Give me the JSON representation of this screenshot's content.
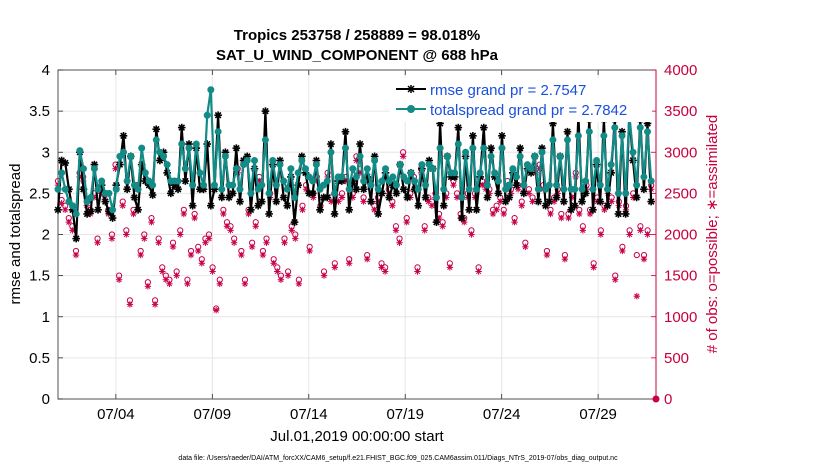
{
  "chart_data": {
    "type": "line",
    "title": "Tropics 253758 / 258889 = 98.018%",
    "subtitle": "SAT_U_WIND_COMPONENT @ 688 hPa",
    "xlabel": "Jul.01,2019 00:00:00 start",
    "ylabel": "rmse and totalspread",
    "ylabel_right": "# of obs: o=possible; ∗=assimilated",
    "xlim": [
      1.0,
      32.0
    ],
    "ylim": [
      0,
      4
    ],
    "ylim_right": [
      0,
      4000
    ],
    "xticks": [
      4,
      9,
      14,
      19,
      24,
      29
    ],
    "xticklabels": [
      "07/04",
      "07/09",
      "07/14",
      "07/19",
      "07/24",
      "07/29"
    ],
    "yticks": [
      0,
      0.5,
      1,
      1.5,
      2,
      2.5,
      3,
      3.5,
      4
    ],
    "yticklabels": [
      "0",
      "0.5",
      "1",
      "1.5",
      "2",
      "2.5",
      "3",
      "3.5",
      "4"
    ],
    "yticks_right": [
      0,
      500,
      1000,
      1500,
      2000,
      2500,
      3000,
      3500,
      4000
    ],
    "yticklabels_right": [
      "0",
      "500",
      "1000",
      "1500",
      "2000",
      "2500",
      "3000",
      "3500",
      "4000"
    ],
    "grid": true,
    "legend_position": "top-right",
    "series": [
      {
        "name": "rmse grand pr = 2.7547",
        "color": "#000000",
        "marker": "asterisk",
        "values": [
          2.3,
          2.9,
          2.87,
          2.55,
          2.3,
          1.95,
          3.0,
          2.55,
          2.25,
          2.28,
          2.85,
          2.3,
          2.6,
          2.4,
          2.28,
          2.2,
          2.6,
          2.85,
          3.2,
          2.55,
          2.95,
          2.45,
          2.3,
          2.85,
          2.65,
          2.6,
          2.48,
          3.28,
          2.9,
          3.0,
          2.75,
          2.5,
          2.6,
          2.55,
          3.3,
          2.65,
          3.1,
          2.35,
          3.05,
          2.55,
          2.55,
          3.1,
          2.35,
          2.55,
          3.45,
          2.45,
          3.0,
          2.45,
          2.5,
          3.05,
          2.4,
          2.9,
          2.95,
          2.3,
          2.8,
          2.35,
          2.4,
          3.5,
          2.25,
          2.85,
          2.4,
          2.9,
          2.45,
          2.35,
          2.7,
          2.15,
          2.6,
          2.95,
          2.75,
          2.5,
          2.5,
          2.9,
          2.3,
          2.45,
          2.45,
          3.1,
          2.25,
          2.65,
          2.65,
          3.25,
          2.3,
          2.65,
          2.55,
          3.1,
          2.55,
          2.7,
          2.4,
          2.95,
          2.25,
          2.5,
          2.75,
          2.45,
          2.6,
          2.5,
          2.85,
          2.55,
          2.45,
          2.75,
          2.55,
          2.35,
          2.8,
          2.45,
          2.9,
          2.8,
          2.15,
          3.35,
          2.35,
          2.95,
          2.7,
          2.7,
          3.3,
          2.2,
          2.95,
          2.3,
          3.2,
          2.3,
          2.7,
          3.3,
          2.45,
          3.05,
          2.7,
          2.5,
          3.2,
          2.4,
          2.45,
          2.75,
          2.6,
          3.05,
          2.5,
          2.8,
          2.75,
          2.95,
          2.4,
          3.05,
          2.35,
          2.4,
          3.35,
          2.45,
          2.95,
          2.4,
          3.25,
          2.3,
          2.35,
          3.45,
          2.4,
          2.5,
          3.4,
          2.3,
          2.85,
          2.4,
          3.4,
          2.35,
          2.75,
          3.4,
          2.25,
          3.25,
          2.25,
          3.45,
          2.9,
          2.45,
          3.4,
          2.55,
          3.35,
          2.4
        ]
      },
      {
        "name": "totalspread grand pr = 2.7842",
        "color": "#138b86",
        "marker": "circle",
        "values": [
          2.55,
          2.75,
          2.55,
          2.4,
          2.35,
          2.25,
          3.02,
          2.8,
          2.4,
          2.45,
          2.8,
          2.55,
          2.65,
          2.5,
          2.5,
          2.3,
          2.55,
          2.95,
          3.0,
          2.65,
          2.95,
          2.6,
          2.55,
          3.05,
          2.75,
          2.65,
          2.6,
          3.15,
          3.0,
          2.95,
          2.85,
          2.65,
          2.65,
          2.65,
          3.1,
          2.8,
          3.05,
          2.6,
          3.1,
          2.75,
          2.6,
          3.45,
          3.76,
          2.6,
          3.25,
          2.55,
          2.95,
          2.6,
          2.6,
          2.8,
          2.55,
          2.85,
          2.9,
          2.5,
          2.9,
          2.55,
          2.6,
          3.15,
          2.5,
          2.9,
          2.6,
          2.85,
          2.65,
          2.55,
          2.8,
          2.45,
          2.75,
          2.9,
          2.8,
          2.7,
          2.65,
          2.85,
          2.55,
          2.6,
          2.65,
          3.0,
          2.5,
          2.7,
          2.7,
          3.05,
          2.55,
          2.8,
          2.7,
          2.95,
          2.65,
          2.8,
          2.6,
          2.9,
          2.55,
          2.65,
          2.8,
          2.65,
          2.7,
          2.6,
          2.85,
          2.7,
          2.65,
          2.75,
          2.65,
          2.55,
          2.85,
          2.6,
          2.85,
          2.8,
          2.45,
          3.05,
          2.55,
          2.95,
          2.75,
          2.75,
          3.1,
          2.45,
          3.0,
          2.55,
          3.05,
          2.55,
          2.75,
          3.05,
          2.6,
          2.95,
          2.75,
          2.65,
          3.05,
          2.55,
          2.6,
          2.8,
          2.7,
          2.95,
          2.6,
          2.85,
          2.8,
          2.95,
          2.55,
          3.0,
          2.55,
          2.6,
          3.15,
          2.6,
          2.95,
          2.55,
          3.15,
          2.55,
          2.55,
          3.2,
          2.55,
          2.65,
          3.25,
          2.55,
          2.9,
          2.6,
          3.2,
          2.55,
          2.85,
          3.3,
          2.5,
          3.2,
          2.5,
          3.45,
          3.0,
          2.6,
          3.3,
          2.7,
          3.25,
          2.65
        ]
      },
      {
        "name": "obs possible",
        "color": "#c8004b",
        "marker": "circle",
        "axis": "right",
        "values": [
          2650,
          2420,
          2350,
          2200,
          2100,
          1800,
          2750,
          2700,
          2400,
          2300,
          2500,
          1950,
          2550,
          2480,
          2300,
          2000,
          2850,
          1500,
          2400,
          2050,
          1200,
          2300,
          2600,
          1800,
          2000,
          1420,
          2200,
          1200,
          1950,
          1600,
          1500,
          1450,
          1900,
          1550,
          2050,
          2300,
          1450,
          1800,
          2250,
          1850,
          1700,
          1950,
          2000,
          1600,
          1100,
          1450,
          2300,
          2150,
          2100,
          1950,
          2800,
          1800,
          1450,
          2300,
          1900,
          2150,
          2700,
          1800,
          1950,
          2500,
          1700,
          1600,
          1500,
          1950,
          1550,
          2100,
          2000,
          1450,
          2350,
          2600,
          1850,
          2500,
          2700,
          2350,
          1550,
          2750,
          2450,
          1650,
          2450,
          2500,
          2700,
          1700,
          2500,
          2950,
          2800,
          2450,
          1750,
          2650,
          2350,
          2450,
          1650,
          1600,
          2550,
          2400,
          2100,
          1950,
          3000,
          2200,
          2500,
          2700,
          1600,
          2800,
          2100,
          2450,
          2400,
          2500,
          2250,
          2150,
          2500,
          1650,
          2650,
          2500,
          2250,
          2200,
          2500,
          2050,
          2500,
          1600,
          2650,
          2600,
          2550,
          2300,
          2350,
          2450,
          2300,
          2650,
          2550,
          2200,
          2600,
          2400,
          1900,
          2550,
          2450,
          2800,
          2850,
          2600,
          1800,
          2300,
          2450,
          2550,
          2250,
          1750,
          2250,
          2500,
          2750,
          2300,
          2100,
          2600,
          2300,
          1650,
          2450,
          2050,
          2350,
          2550,
          2450,
          1500,
          2400,
          1850,
          2350,
          2050,
          2500,
          1750,
          2100,
          1750,
          2050,
          2600
        ]
      },
      {
        "name": "obs assimilated",
        "color": "#c8004b",
        "marker": "asterisk",
        "axis": "right",
        "values": [
          2600,
          2380,
          2300,
          2150,
          2050,
          1750,
          2700,
          2650,
          2350,
          2250,
          2450,
          1900,
          2500,
          2430,
          2250,
          1950,
          2800,
          1450,
          2350,
          2000,
          1150,
          2250,
          2550,
          1750,
          1950,
          1370,
          2150,
          1150,
          1900,
          1550,
          1450,
          1400,
          1850,
          1500,
          2000,
          2250,
          1400,
          1750,
          2200,
          1800,
          1650,
          1900,
          1950,
          1550,
          1080,
          1400,
          2250,
          2100,
          2050,
          1900,
          2750,
          1750,
          1400,
          2250,
          1850,
          2100,
          2650,
          1750,
          1900,
          2450,
          1650,
          1550,
          1450,
          1900,
          1500,
          2050,
          1950,
          1400,
          2300,
          2550,
          1800,
          2450,
          2650,
          2300,
          1500,
          2700,
          2400,
          1600,
          2400,
          2450,
          2650,
          1650,
          2450,
          2900,
          2750,
          2400,
          1700,
          2600,
          2300,
          2400,
          1600,
          1550,
          2500,
          2350,
          2050,
          1900,
          2950,
          2150,
          2450,
          2650,
          1550,
          2750,
          2050,
          2400,
          2350,
          2450,
          2200,
          2100,
          2450,
          1600,
          2600,
          2450,
          2200,
          2150,
          2450,
          2000,
          2450,
          1550,
          2600,
          2550,
          2500,
          2250,
          2300,
          2400,
          2250,
          2600,
          2500,
          2150,
          2550,
          2350,
          1850,
          2500,
          2400,
          2750,
          2800,
          2550,
          1750,
          2250,
          2400,
          2500,
          2200,
          1700,
          2200,
          2450,
          2700,
          2250,
          2050,
          2550,
          2250,
          1600,
          2400,
          2000,
          2300,
          2500,
          2400,
          1450,
          2350,
          1800,
          2300,
          2000,
          2450,
          1250,
          2050,
          1700,
          2000,
          2550
        ]
      }
    ],
    "final_point": {
      "x": 32.0,
      "value_right": 0
    }
  },
  "footer": "data file: /Users/raeder/DAI/ATM_forcXX/CAM6_setup/f.e21.FHIST_BGC.f09_025.CAM6assim.011/Diags_NTrS_2019-07/obs_diag_output.nc"
}
